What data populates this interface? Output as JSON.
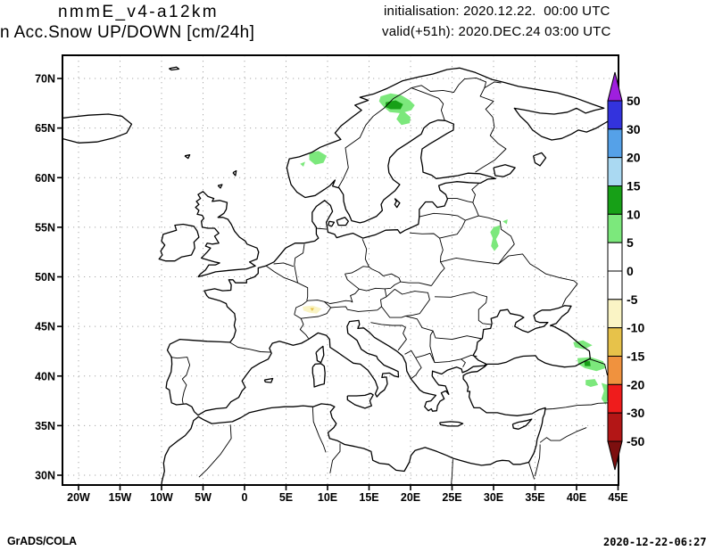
{
  "header": {
    "model": "nmmE_v4-a12km",
    "product": "n Acc.Snow UP/DOWN [cm/24h]",
    "init_line": "initialisation: 2020.12.22.  00:00 UTC",
    "valid_line": "valid(+51h): 2020.DEC.24 03:00 UTC"
  },
  "footer": {
    "left": "GrADS/COLA",
    "right": "2020-12-22-06:27"
  },
  "map": {
    "grid_color": "#a8a8a8",
    "coast_color": "#000000",
    "lat_ticks": [
      {
        "value": 70,
        "label": "70N"
      },
      {
        "value": 65,
        "label": "65N"
      },
      {
        "value": 60,
        "label": "60N"
      },
      {
        "value": 55,
        "label": "55N"
      },
      {
        "value": 50,
        "label": "50N"
      },
      {
        "value": 45,
        "label": "45N"
      },
      {
        "value": 40,
        "label": "40N"
      },
      {
        "value": 35,
        "label": "35N"
      },
      {
        "value": 30,
        "label": "30N"
      }
    ],
    "lon_ticks": [
      {
        "value": -20,
        "label": "20W"
      },
      {
        "value": -15,
        "label": "15W"
      },
      {
        "value": -10,
        "label": "10W"
      },
      {
        "value": -5,
        "label": "5W"
      },
      {
        "value": 0,
        "label": "0"
      },
      {
        "value": 5,
        "label": "5E"
      },
      {
        "value": 10,
        "label": "10E"
      },
      {
        "value": 15,
        "label": "15E"
      },
      {
        "value": 20,
        "label": "20E"
      },
      {
        "value": 25,
        "label": "25E"
      },
      {
        "value": 30,
        "label": "30E"
      },
      {
        "value": 35,
        "label": "35E"
      },
      {
        "value": 40,
        "label": "40E"
      },
      {
        "value": 45,
        "label": "45E"
      }
    ]
  },
  "colorbar": {
    "labels": [
      "50",
      "30",
      "20",
      "15",
      "10",
      "5",
      "0",
      "-5",
      "-10",
      "-15",
      "-20",
      "-30",
      "-50"
    ],
    "levels": [
      50,
      30,
      20,
      15,
      10,
      5,
      0,
      -5,
      -10,
      -15,
      -20,
      -30,
      -50
    ],
    "colors_top_to_bottom": [
      "#9f1fdf",
      "#3333dd",
      "#55a1e8",
      "#aad9f2",
      "#17a017",
      "#7ce87c",
      "#ffffff",
      "#ffffff",
      "#faf4c5",
      "#e7c24a",
      "#f0923e",
      "#ef1c1c",
      "#b31616",
      "#7d0f0f"
    ]
  },
  "chart_data": {
    "type": "heatmap",
    "subtype": "filled-contour-weather-map",
    "title": "nmmE_v4-a12km  n Acc.Snow UP/DOWN [cm/24h]",
    "units": "cm/24h",
    "lon_range": [
      -22,
      45
    ],
    "lat_range": [
      29,
      72.3
    ],
    "contour_levels": [
      -50,
      -30,
      -20,
      -15,
      -10,
      -5,
      0,
      5,
      10,
      15,
      20,
      30,
      50
    ],
    "legend_position": "right",
    "grid": "dotted 5-degree lat/lon"
  },
  "snow_patches": [
    {
      "area": "northern-sweden",
      "level": "5-10",
      "color": "#7ce87c",
      "points": [
        [
          16.4,
          68.2
        ],
        [
          17.6,
          68.5
        ],
        [
          18.9,
          68.3
        ],
        [
          19.9,
          67.8
        ],
        [
          20.5,
          67.3
        ],
        [
          20.1,
          66.8
        ],
        [
          19.3,
          66.6
        ],
        [
          20.0,
          66.1
        ],
        [
          19.9,
          65.5
        ],
        [
          18.9,
          65.3
        ],
        [
          18.3,
          65.9
        ],
        [
          18.7,
          66.5
        ],
        [
          17.5,
          66.6
        ],
        [
          16.8,
          67.1
        ],
        [
          16.2,
          67.7
        ]
      ]
    },
    {
      "area": "northern-sweden-core",
      "level": "10-15",
      "color": "#17a017",
      "points": [
        [
          17.0,
          67.6
        ],
        [
          18.2,
          67.8
        ],
        [
          19.1,
          67.4
        ],
        [
          18.8,
          66.9
        ],
        [
          17.6,
          66.9
        ],
        [
          17.0,
          67.1
        ]
      ]
    },
    {
      "area": "sw-norway",
      "level": "5-10",
      "color": "#7ce87c",
      "points": [
        [
          7.8,
          62.5
        ],
        [
          8.9,
          62.7
        ],
        [
          9.9,
          62.2
        ],
        [
          9.5,
          61.5
        ],
        [
          8.5,
          61.3
        ],
        [
          7.8,
          61.8
        ]
      ]
    },
    {
      "area": "sw-norway-spot",
      "level": "5-10",
      "color": "#7ce87c",
      "points": [
        [
          6.7,
          61.4
        ],
        [
          7.3,
          61.6
        ],
        [
          7.1,
          61.1
        ]
      ]
    },
    {
      "area": "belarus-russia",
      "level": "5-10",
      "color": "#7ce87c",
      "points": [
        [
          30.0,
          55.0
        ],
        [
          30.8,
          55.2
        ],
        [
          30.7,
          54.4
        ],
        [
          30.3,
          53.8
        ],
        [
          30.6,
          53.1
        ],
        [
          30.1,
          52.6
        ],
        [
          29.7,
          53.1
        ],
        [
          29.9,
          53.9
        ],
        [
          29.6,
          54.5
        ]
      ]
    },
    {
      "area": "belarus-russia-spot",
      "level": "5-10",
      "color": "#7ce87c",
      "points": [
        [
          31.1,
          55.6
        ],
        [
          31.7,
          55.8
        ],
        [
          31.6,
          55.3
        ]
      ]
    },
    {
      "area": "caucasus-north",
      "level": "5-10",
      "color": "#7ce87c",
      "points": [
        [
          39.6,
          43.4
        ],
        [
          40.8,
          43.6
        ],
        [
          41.9,
          43.1
        ],
        [
          40.9,
          42.7
        ],
        [
          39.8,
          42.9
        ]
      ]
    },
    {
      "area": "caucasus-south",
      "level": "5-10",
      "color": "#7ce87c",
      "points": [
        [
          40.1,
          41.8
        ],
        [
          41.7,
          41.9
        ],
        [
          43.2,
          41.5
        ],
        [
          43.5,
          40.8
        ],
        [
          42.4,
          40.5
        ],
        [
          41.0,
          40.8
        ],
        [
          40.2,
          41.2
        ]
      ]
    },
    {
      "area": "caucasus-south-core",
      "level": "10-15",
      "color": "#17a017",
      "points": [
        [
          40.9,
          41.5
        ],
        [
          41.6,
          41.5
        ],
        [
          41.7,
          41.0
        ],
        [
          41.0,
          41.0
        ]
      ]
    },
    {
      "area": "east-turkey",
      "level": "5-10",
      "color": "#7ce87c",
      "points": [
        [
          41.1,
          39.6
        ],
        [
          42.2,
          39.7
        ],
        [
          42.6,
          39.1
        ],
        [
          41.7,
          38.9
        ],
        [
          41.1,
          39.1
        ]
      ]
    },
    {
      "area": "east-turkey-strip",
      "level": "5-10",
      "color": "#7ce87c",
      "points": [
        [
          43.0,
          39.3
        ],
        [
          43.8,
          39.1
        ],
        [
          43.9,
          38.0
        ],
        [
          43.5,
          37.1
        ],
        [
          43.0,
          37.7
        ],
        [
          43.3,
          38.5
        ]
      ]
    },
    {
      "area": "swiss-alps-melt",
      "level": "-10--5",
      "color": "#faf4c5",
      "points": [
        [
          7.0,
          47.0
        ],
        [
          8.2,
          47.1
        ],
        [
          9.3,
          46.8
        ],
        [
          8.7,
          46.3
        ],
        [
          7.8,
          46.4
        ],
        [
          7.1,
          46.6
        ]
      ]
    },
    {
      "area": "swiss-alps-melt-core",
      "level": "-15--10",
      "color": "#e7c24a",
      "points": [
        [
          7.9,
          46.85
        ],
        [
          8.4,
          46.85
        ],
        [
          8.15,
          46.55
        ]
      ]
    }
  ]
}
